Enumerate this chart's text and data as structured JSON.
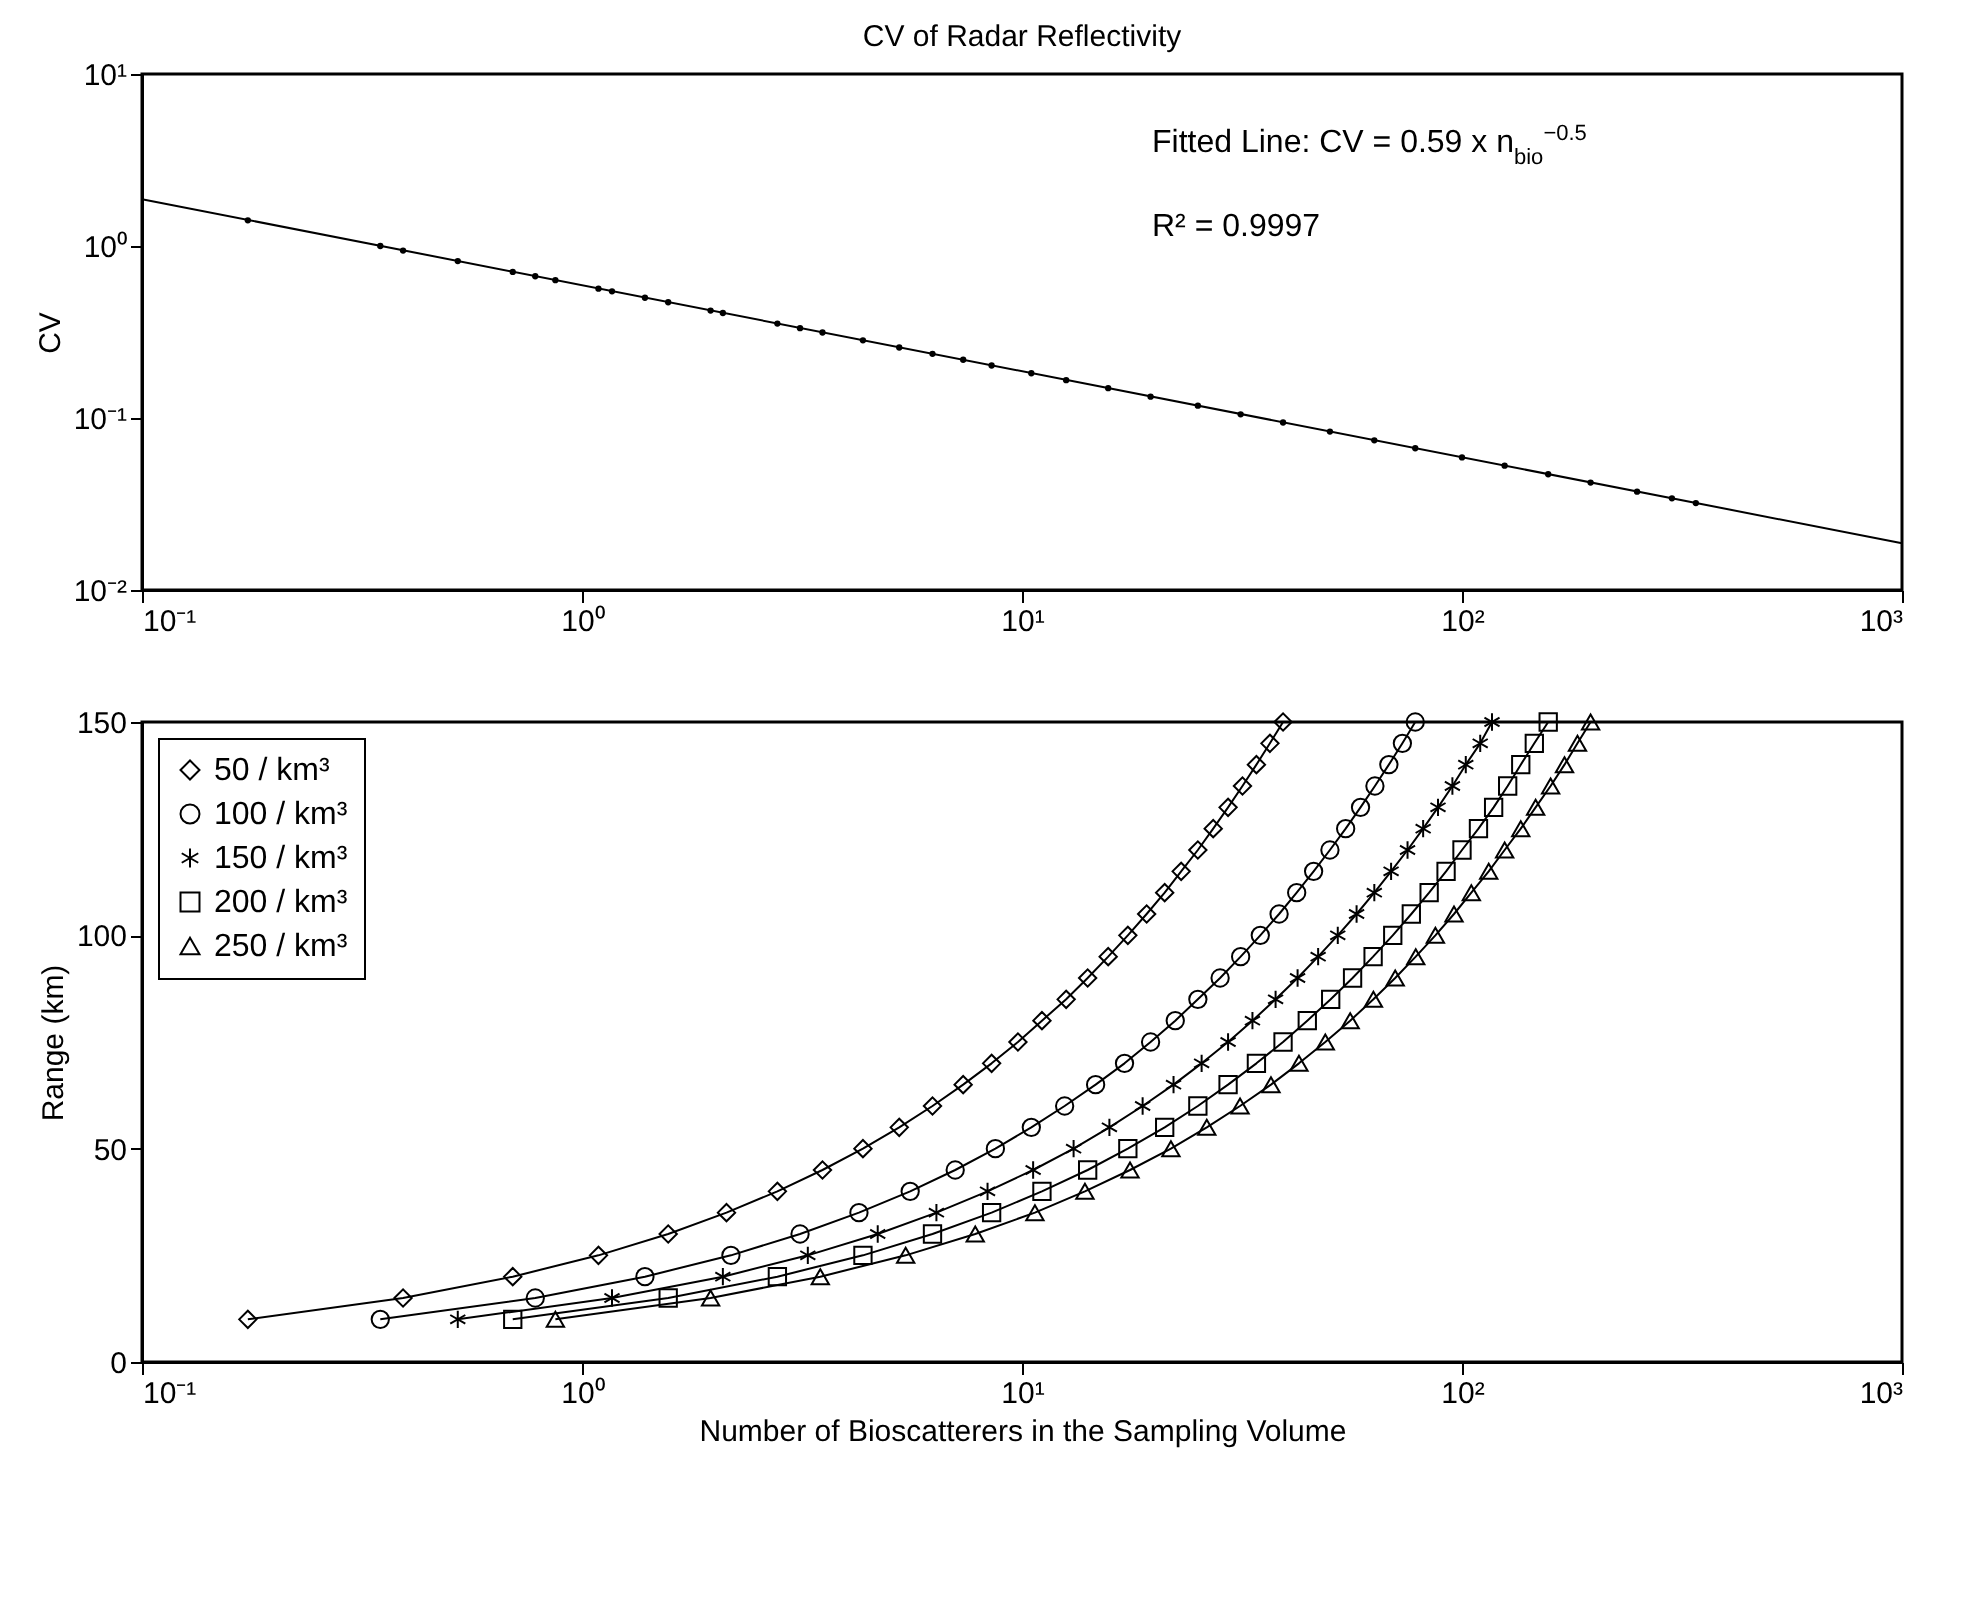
{
  "chart_data": [
    {
      "type": "scatter",
      "title": "CV of Radar Reflectivity",
      "ylabel": "CV",
      "log": "xy",
      "grid": false,
      "xlim": [
        0.1,
        1000
      ],
      "ylim": [
        0.01,
        10
      ],
      "xticks": [
        {
          "value": 0.1,
          "label": "10⁻¹"
        },
        {
          "value": 1,
          "label": "10⁰"
        },
        {
          "value": 10,
          "label": "10¹"
        },
        {
          "value": 100,
          "label": "10²"
        },
        {
          "value": 1000,
          "label": "10³"
        }
      ],
      "yticks": [
        {
          "value": 0.01,
          "label": "10⁻²"
        },
        {
          "value": 0.1,
          "label": "10⁻¹"
        },
        {
          "value": 1,
          "label": "10⁰"
        },
        {
          "value": 10,
          "label": "10¹"
        }
      ],
      "annotations": [
        "Fitted Line: CV = 0.59 x n$_{bio}$$^{−0.5}$",
        "R² = 0.9997"
      ],
      "series": [
        {
          "color": "#000000",
          "marker": "circle",
          "x": [
            0.174,
            0.348,
            0.392,
            0.522,
            0.696,
            0.783,
            0.87,
            1.09,
            1.17,
            1.39,
            1.57,
            1.96,
            2.09,
            2.78,
            3.13,
            3.52,
            4.35,
            5.26,
            6.26,
            7.35,
            8.53,
            10.5,
            12.6,
            15.7,
            19.6,
            25.1,
            31.4,
            39.2,
            50.1,
            63.2,
            78.3,
            100,
            125,
            157,
            196,
            250,
            300,
            340
          ],
          "values": [
            1.41,
            1.0,
            0.94,
            0.817,
            0.707,
            0.667,
            0.633,
            0.565,
            0.545,
            0.5,
            0.471,
            0.421,
            0.408,
            0.354,
            0.333,
            0.314,
            0.283,
            0.257,
            0.236,
            0.218,
            0.202,
            0.182,
            0.166,
            0.149,
            0.133,
            0.118,
            0.105,
            0.0942,
            0.0834,
            0.0742,
            0.0667,
            0.059,
            0.0528,
            0.0471,
            0.0421,
            0.0373,
            0.0341,
            0.032
          ]
        },
        {
          "type": "line",
          "color": "#000000",
          "x": [
            0.1,
            1000
          ],
          "values": [
            1.87,
            0.0187
          ]
        }
      ]
    },
    {
      "type": "line",
      "xlabel": "Number of Bioscatterers in the Sampling Volume",
      "ylabel": "Range (km)",
      "log": "x",
      "grid": false,
      "legend": "top left",
      "xlim": [
        0.1,
        1000
      ],
      "ylim": [
        0,
        150
      ],
      "xticks": [
        {
          "value": 0.1,
          "label": "10⁻¹"
        },
        {
          "value": 1,
          "label": "10⁰"
        },
        {
          "value": 10,
          "label": "10¹"
        },
        {
          "value": 100,
          "label": "10²"
        },
        {
          "value": 1000,
          "label": "10³"
        }
      ],
      "yticks": [
        0,
        50,
        100,
        150
      ],
      "series": [
        {
          "name": "50 / km³",
          "color": "#000000",
          "marker": "diamond",
          "x": [
            0.174,
            0.392,
            0.696,
            1.09,
            1.57,
            2.13,
            2.78,
            3.52,
            4.35,
            5.26,
            6.26,
            7.35,
            8.53,
            9.79,
            11.1,
            12.6,
            14.1,
            15.7,
            17.4,
            19.2,
            21.1,
            23.0,
            25.1,
            27.2,
            29.4,
            31.7,
            34.1,
            36.6,
            39.2
          ],
          "values": [
            10,
            15,
            20,
            25,
            30,
            35,
            40,
            45,
            50,
            55,
            60,
            65,
            70,
            75,
            80,
            85,
            90,
            95,
            100,
            105,
            110,
            115,
            120,
            125,
            130,
            135,
            140,
            145,
            150
          ]
        },
        {
          "name": "100 / km³",
          "color": "#000000",
          "marker": "circle",
          "x": [
            0.348,
            0.783,
            1.39,
            2.18,
            3.13,
            4.26,
            5.57,
            7.05,
            8.7,
            10.5,
            12.5,
            14.7,
            17.1,
            19.6,
            22.3,
            25.1,
            28.2,
            31.4,
            34.8,
            38.4,
            42.1,
            46.0,
            50.1,
            54.4,
            58.8,
            63.4,
            68.2,
            73.2,
            78.3
          ],
          "values": [
            10,
            15,
            20,
            25,
            30,
            35,
            40,
            45,
            50,
            55,
            60,
            65,
            70,
            75,
            80,
            85,
            90,
            95,
            100,
            105,
            110,
            115,
            120,
            125,
            130,
            135,
            140,
            145,
            150
          ]
        },
        {
          "name": "150 / km³",
          "color": "#000000",
          "marker": "cross",
          "x": [
            0.522,
            1.17,
            2.09,
            3.26,
            4.7,
            6.39,
            8.35,
            10.6,
            13.1,
            15.8,
            18.8,
            22.1,
            25.6,
            29.4,
            33.4,
            37.7,
            42.3,
            47.1,
            52.2,
            57.6,
            63.2,
            69.0,
            75.2,
            81.6,
            88.2,
            95.1,
            102,
            110,
            117
          ],
          "values": [
            10,
            15,
            20,
            25,
            30,
            35,
            40,
            45,
            50,
            55,
            60,
            65,
            70,
            75,
            80,
            85,
            90,
            95,
            100,
            105,
            110,
            115,
            120,
            125,
            130,
            135,
            140,
            145,
            150
          ]
        },
        {
          "name": "200 / km³",
          "color": "#000000",
          "marker": "square",
          "x": [
            0.696,
            1.57,
            2.78,
            4.35,
            6.26,
            8.53,
            11.1,
            14.1,
            17.4,
            21.1,
            25.1,
            29.4,
            34.1,
            39.2,
            44.5,
            50.3,
            56.4,
            62.8,
            69.6,
            76.7,
            84.2,
            92.0,
            100,
            109,
            118,
            127,
            136,
            146,
            157
          ],
          "values": [
            10,
            15,
            20,
            25,
            30,
            35,
            40,
            45,
            50,
            55,
            60,
            65,
            70,
            75,
            80,
            85,
            90,
            95,
            100,
            105,
            110,
            115,
            120,
            125,
            130,
            135,
            140,
            145,
            150
          ]
        },
        {
          "name": "250 / km³",
          "color": "#000000",
          "marker": "triangle",
          "x": [
            0.87,
            1.96,
            3.48,
            5.44,
            7.83,
            10.7,
            13.9,
            17.6,
            21.8,
            26.3,
            31.3,
            36.8,
            42.6,
            48.9,
            55.7,
            62.9,
            70.5,
            78.5,
            87.0,
            95.9,
            105,
            115,
            125,
            136,
            147,
            159,
            171,
            183,
            196
          ],
          "values": [
            10,
            15,
            20,
            25,
            30,
            35,
            40,
            45,
            50,
            55,
            60,
            65,
            70,
            75,
            80,
            85,
            90,
            95,
            100,
            105,
            110,
            115,
            120,
            125,
            130,
            135,
            140,
            145,
            150
          ]
        }
      ]
    }
  ]
}
